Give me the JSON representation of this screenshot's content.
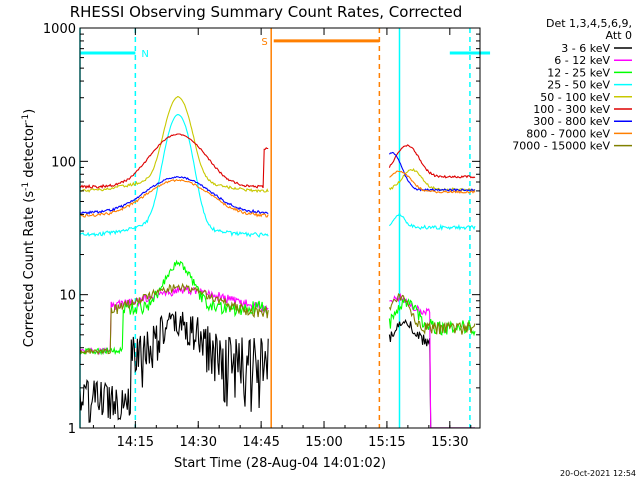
{
  "chart_data": {
    "type": "line",
    "title": "RHESSI Observing Summary Count Rates, Corrected",
    "xlabel": "Start Time (28-Aug-04 14:01:02)",
    "ylabel_main": "Corrected Count Rate (s",
    "ylabel_sup1": "-1",
    "ylabel_mid": " detector",
    "ylabel_sup2": "-1",
    "ylabel_end": ")",
    "ylog": true,
    "ylim": [
      1,
      1000
    ],
    "xlim": [
      14.03,
      15.62
    ],
    "x_ticks": [
      {
        "value": 14.25,
        "label": "14:15"
      },
      {
        "value": 14.5,
        "label": "14:30"
      },
      {
        "value": 14.75,
        "label": "14:45"
      },
      {
        "value": 15.0,
        "label": "15:00"
      },
      {
        "value": 15.25,
        "label": "15:15"
      },
      {
        "value": 15.5,
        "label": "15:30"
      }
    ],
    "y_ticks": [
      {
        "value": 1,
        "label": "1"
      },
      {
        "value": 10,
        "label": "10"
      },
      {
        "value": 100,
        "label": "100"
      },
      {
        "value": 1000,
        "label": "1000"
      }
    ],
    "legend_header": [
      "Det 1,3,4,5,6,9,",
      "Att 0"
    ],
    "legend_placement": "right",
    "series": [
      {
        "name": "3 - 6 keV",
        "color": "#000000"
      },
      {
        "name": "6 - 12 keV",
        "color": "#ff00ff"
      },
      {
        "name": "12 - 25 keV",
        "color": "#00ff00"
      },
      {
        "name": "25 - 50 keV",
        "color": "#00ffff"
      },
      {
        "name": "50 - 100 keV",
        "color": "#c8c800"
      },
      {
        "name": "100 - 300 keV",
        "color": "#dd0000"
      },
      {
        "name": "300 - 800 keV",
        "color": "#0000ff"
      },
      {
        "name": "800 - 7000 keV",
        "color": "#ff7f00"
      },
      {
        "name": "7000 - 15000 keV",
        "color": "#808000"
      }
    ],
    "annotations": [
      {
        "label": "N",
        "color": "#00ffff",
        "x_start": 14.03,
        "x_end": 14.25,
        "y": 650
      },
      {
        "label": "S",
        "color": "#ff7f00",
        "x_start": 14.8,
        "x_end": 15.22,
        "y": 800
      },
      {
        "label": "",
        "color": "#00ffff",
        "x_start": 15.5,
        "x_end": 15.66,
        "y": 650
      }
    ],
    "vlines": [
      {
        "x": 14.03,
        "color": "#00ffff",
        "style": "solid"
      },
      {
        "x": 14.25,
        "color": "#00ffff",
        "style": "dashed"
      },
      {
        "x": 14.79,
        "color": "#ff7f00",
        "style": "solid"
      },
      {
        "x": 15.22,
        "color": "#ff7f00",
        "style": "dashed"
      },
      {
        "x": 15.3,
        "color": "#00ffff",
        "style": "solid"
      },
      {
        "x": 15.58,
        "color": "#00ffff",
        "style": "dashed"
      }
    ],
    "gap": [
      14.78,
      15.26
    ]
  },
  "timestamp": "20-Oct-2021 12:54"
}
